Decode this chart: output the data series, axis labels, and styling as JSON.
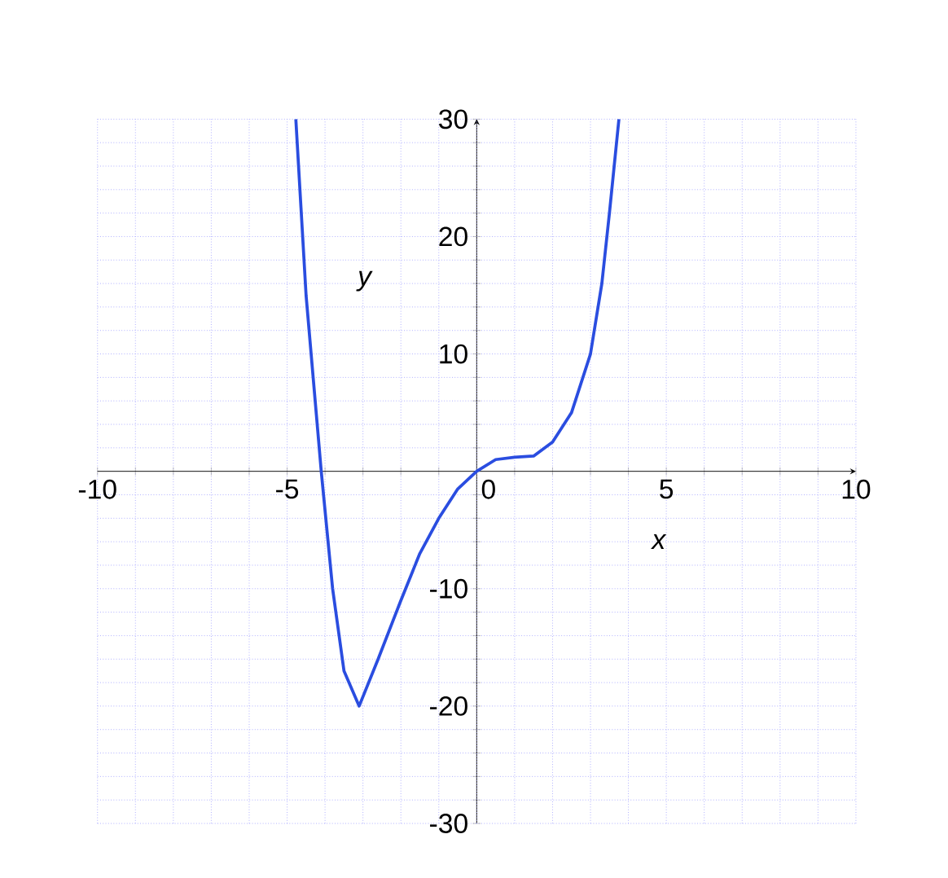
{
  "chart_data": {
    "type": "line",
    "xlabel": "x",
    "ylabel": "y",
    "x": [
      -4.77,
      -4.5,
      -4.1,
      -3.8,
      -3.5,
      -3.1,
      -2.6,
      -2,
      -1.5,
      -1,
      -0.5,
      0,
      0.5,
      1,
      1.5,
      2,
      2.5,
      3,
      3.3,
      3.5,
      3.75
    ],
    "series": [
      {
        "color": "#2a4de0",
        "values": [
          30,
          15,
          0,
          -10,
          -17,
          -20,
          -16,
          -11,
          -7,
          -4,
          -1.5,
          0,
          1,
          1.2,
          1.3,
          2.5,
          5,
          10,
          16,
          22,
          30
        ]
      }
    ],
    "xlim": [
      -10,
      10
    ],
    "ylim": [
      -30,
      30
    ],
    "xticks": [
      -10,
      {
        "value": -9,
        "label": null
      },
      {
        "value": -8,
        "label": null
      },
      {
        "value": -7,
        "label": null
      },
      {
        "value": -6,
        "label": null
      },
      -5,
      {
        "value": -4,
        "label": null
      },
      {
        "value": -3,
        "label": null
      },
      {
        "value": -2,
        "label": null
      },
      {
        "value": -1,
        "label": null
      },
      0,
      {
        "value": 1,
        "label": null
      },
      {
        "value": 2,
        "label": null
      },
      {
        "value": 3,
        "label": null
      },
      {
        "value": 4,
        "label": null
      },
      5,
      {
        "value": 6,
        "label": null
      },
      {
        "value": 7,
        "label": null
      },
      {
        "value": 8,
        "label": null
      },
      {
        "value": 9,
        "label": null
      },
      10
    ],
    "yticks": [
      -30,
      {
        "value": -28,
        "label": null
      },
      {
        "value": -26,
        "label": null
      },
      {
        "value": -24,
        "label": null
      },
      {
        "value": -22,
        "label": null
      },
      -20,
      {
        "value": -18,
        "label": null
      },
      {
        "value": -16,
        "label": null
      },
      {
        "value": -14,
        "label": null
      },
      {
        "value": -12,
        "label": null
      },
      -10,
      {
        "value": -8,
        "label": null
      },
      {
        "value": -6,
        "label": null
      },
      {
        "value": -4,
        "label": null
      },
      {
        "value": -2,
        "label": null
      },
      {
        "value": 2,
        "label": null
      },
      {
        "value": 4,
        "label": null
      },
      {
        "value": 6,
        "label": null
      },
      {
        "value": 8,
        "label": null
      },
      10,
      {
        "value": 12,
        "label": null
      },
      {
        "value": 14,
        "label": null
      },
      {
        "value": 16,
        "label": null
      },
      {
        "value": 18,
        "label": null
      },
      20,
      {
        "value": 22,
        "label": null
      },
      {
        "value": 24,
        "label": null
      },
      {
        "value": 26,
        "label": null
      },
      {
        "value": 28,
        "label": null
      },
      30
    ],
    "grid": true,
    "marker": "none",
    "line_style": "solid"
  }
}
